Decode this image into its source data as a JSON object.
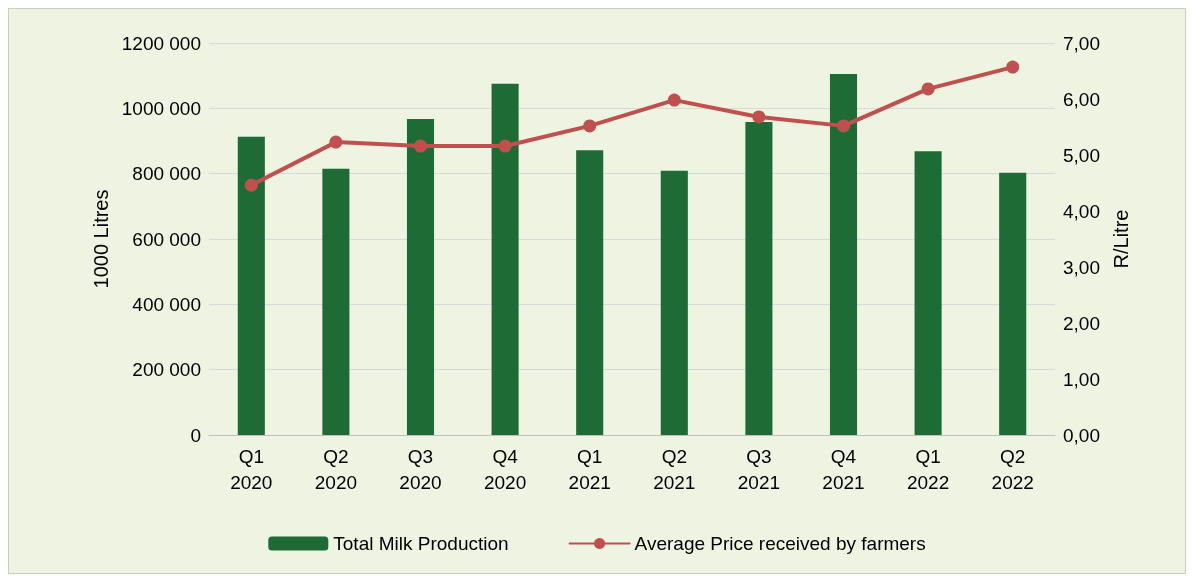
{
  "chart_data": {
    "type": "bar",
    "ylabel": "1000 Litres",
    "y2label": "R/Litre",
    "categories": [
      "Q1 2020",
      "Q2 2020",
      "Q3 2020",
      "Q4 2020",
      "Q1 2021",
      "Q2 2021",
      "Q3 2021",
      "Q4 2021",
      "Q1 2022",
      "Q2 2022"
    ],
    "series": [
      {
        "name": "Total Milk Production",
        "color": "#1e6b35",
        "values": [
          913000,
          815000,
          967000,
          1075000,
          872000,
          809000,
          958000,
          1105000,
          869000,
          803000
        ]
      },
      {
        "name": "Average Price received by farmers",
        "type": "line",
        "axis": "y2",
        "color": "#c0504d",
        "marker": "circle",
        "values": [
          4.46,
          5.23,
          5.16,
          5.16,
          5.52,
          5.98,
          5.68,
          5.52,
          6.18,
          6.57
        ]
      }
    ],
    "ylim": [
      0,
      1200000
    ],
    "yticks": [
      0,
      {
        "value": 200000,
        "label": "200 000"
      },
      {
        "value": 400000,
        "label": "400 000"
      },
      {
        "value": 600000,
        "label": "600 000"
      },
      {
        "value": 800000,
        "label": "800 000"
      },
      {
        "value": 1000000,
        "label": "1000 000"
      },
      {
        "value": 1200000,
        "label": "1200 000"
      }
    ],
    "y2lim": [
      0,
      7
    ],
    "y2ticks": [
      {
        "value": 0,
        "label": "0,00"
      },
      {
        "value": 1,
        "label": "1,00"
      },
      {
        "value": 2,
        "label": "2,00"
      },
      {
        "value": 3,
        "label": "3,00"
      },
      {
        "value": 4,
        "label": "4,00"
      },
      {
        "value": 5,
        "label": "5,00"
      },
      {
        "value": 6,
        "label": "6,00"
      },
      {
        "value": 7,
        "label": "7,00"
      }
    ],
    "grid": "y",
    "legend": "bottom"
  }
}
